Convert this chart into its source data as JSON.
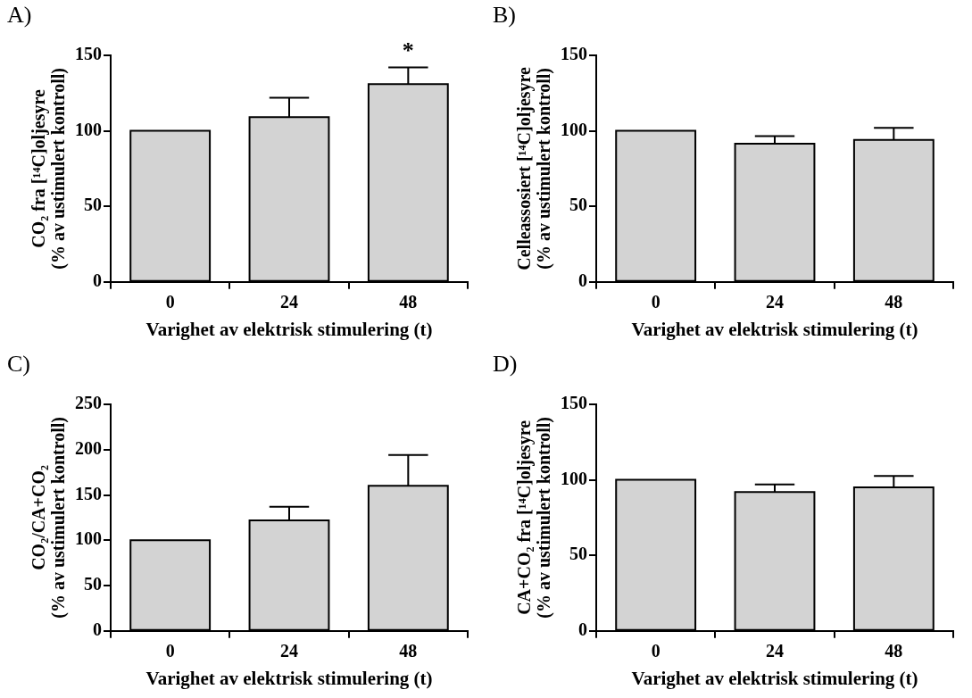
{
  "chart_data": [
    {
      "type": "bar",
      "title": "A)",
      "xlabel": "Varighet av elektrisk stimulering (t)",
      "ylabel": "CO₂ fra [¹⁴C]oljesyre\n(% av ustimulert kontroll)",
      "categories": [
        "0",
        "24",
        "48"
      ],
      "values": [
        100,
        109,
        131
      ],
      "errors": [
        null,
        [
          109,
          122
        ],
        [
          131,
          142
        ]
      ],
      "color": "#d3d3d3",
      "ylim": [
        0,
        150
      ],
      "yticks": [
        0,
        50,
        100,
        150
      ],
      "grid": false,
      "annotations": [
        "*"
      ]
    },
    {
      "type": "bar",
      "title": "B)",
      "xlabel": "Varighet av elektrisk stimulering (t)",
      "ylabel": "Celleassosiert [¹⁴C]oljesyre\n(% av ustimulert kontroll)",
      "categories": [
        "0",
        "24",
        "48"
      ],
      "values": [
        100,
        91.5,
        94
      ],
      "errors": [
        null,
        [
          91.5,
          96.5
        ],
        [
          94,
          102
        ]
      ],
      "color": "#d3d3d3",
      "ylim": [
        0,
        150
      ],
      "yticks": [
        0,
        50,
        100,
        150
      ],
      "grid": false
    },
    {
      "type": "bar",
      "title": "C)",
      "xlabel": "Varighet av elektrisk stimulering (t)",
      "ylabel": "CO₂/CA+CO₂\n(% av ustimulert kontroll)",
      "categories": [
        "0",
        "24",
        "48"
      ],
      "values": [
        100,
        122,
        160
      ],
      "errors": [
        null,
        [
          122,
          137
        ],
        [
          160,
          194
        ]
      ],
      "color": "#d3d3d3",
      "ylim": [
        0,
        250
      ],
      "yticks": [
        0,
        50,
        100,
        150,
        200,
        250
      ],
      "grid": false
    },
    {
      "type": "bar",
      "title": "D)",
      "xlabel": "Varighet av elektrisk stimulering (t)",
      "ylabel": "CA+CO₂ fra [¹⁴C]oljesyre\n(% av ustimulert kontroll)",
      "categories": [
        "0",
        "24",
        "48"
      ],
      "values": [
        100,
        92,
        95
      ],
      "errors": [
        null,
        [
          92,
          97
        ],
        [
          95,
          102.5
        ]
      ],
      "color": "#d3d3d3",
      "ylim": [
        0,
        150
      ],
      "yticks": [
        0,
        50,
        100,
        150
      ],
      "grid": false
    }
  ]
}
